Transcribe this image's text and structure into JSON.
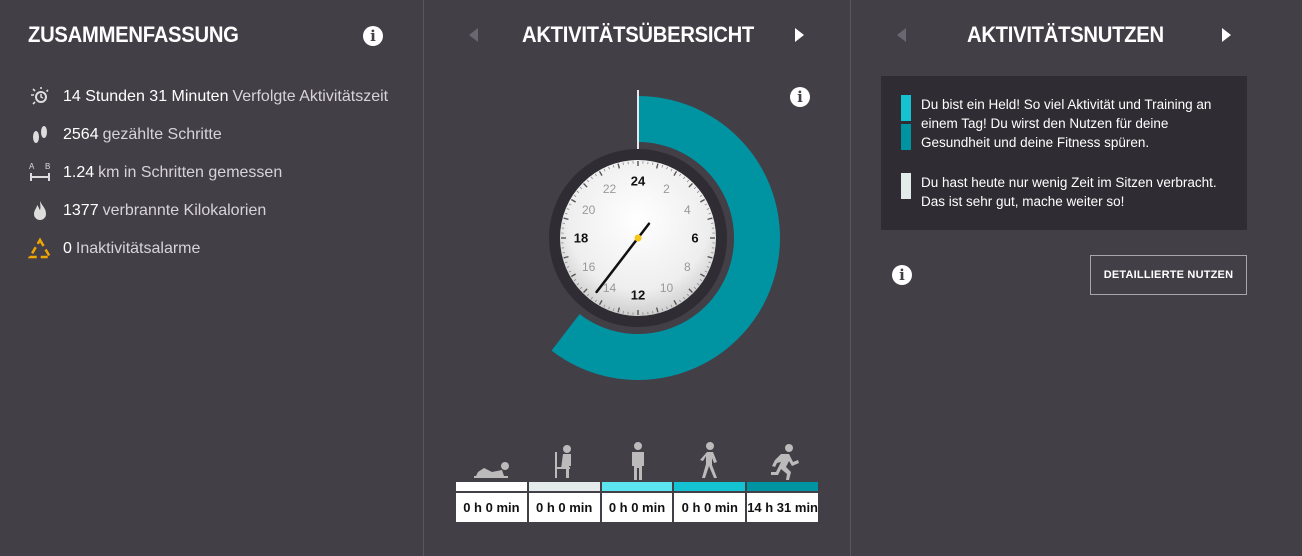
{
  "summary": {
    "title": "ZUSAMMENFASSUNG",
    "items": [
      {
        "icon": "activity-time-icon",
        "value": "14 Stunden 31 Minuten",
        "label": "Verfolgte Aktivitätszeit"
      },
      {
        "icon": "footsteps-icon",
        "value": "2564",
        "label": "gezählte Schritte"
      },
      {
        "icon": "distance-ab-icon",
        "value": "1.24",
        "label": "km in Schritten gemessen"
      },
      {
        "icon": "flame-icon",
        "value": "1377",
        "label": "verbrannte Kilokalorien"
      },
      {
        "icon": "inactivity-alarm-icon",
        "value": "0",
        "label": "Inaktivitätsalarme"
      }
    ]
  },
  "overview": {
    "title": "AKTIVITÄTSÜBERSICHT",
    "clock": {
      "hour_labels": [
        "24",
        "2",
        "4",
        "6",
        "8",
        "10",
        "12",
        "14",
        "16",
        "18",
        "20",
        "22"
      ],
      "hand_hours": 14.5,
      "arc_start_hour": 0,
      "arc_end_hour": 14.5
    },
    "activities": [
      {
        "icon": "lying-person-icon",
        "time": "0 h 0 min"
      },
      {
        "icon": "sitting-person-icon",
        "time": "0 h 0 min"
      },
      {
        "icon": "standing-person-icon",
        "time": "0 h 0 min"
      },
      {
        "icon": "walking-person-icon",
        "time": "0 h 0 min"
      },
      {
        "icon": "running-person-icon",
        "time": "14 h 31 min"
      }
    ]
  },
  "benefits": {
    "title": "AKTIVITÄTSNUTZEN",
    "messages": [
      {
        "text": "Du bist ein Held! So viel Aktivität und Training an einem Tag! Du wirst den Nutzen für deine Gesundheit und deine Fitness spüren."
      },
      {
        "text": "Du hast heute nur wenig Zeit im Sitzen verbracht. Das ist sehr gut, mache weiter so!"
      }
    ],
    "detail_button": "DETAILLIERTE NUTZEN"
  },
  "colors": {
    "background": "#433f47",
    "lying": "#ffffff",
    "sitting": "#e3eceb",
    "standing": "#5de5ef",
    "walking": "#15c2d2",
    "running": "#0093a2",
    "hand_center": "#f5c518"
  }
}
